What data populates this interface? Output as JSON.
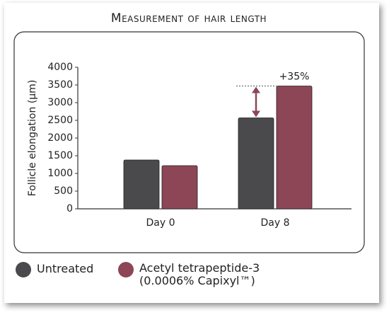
{
  "chart_data": {
    "type": "bar",
    "title": "Measurement of hair length",
    "y_label": "Follicle elongation (µm)",
    "categories": [
      "Day 0",
      "Day 8"
    ],
    "series": [
      {
        "name": "Untreated",
        "color": "#4a4a4d",
        "values": [
          1380,
          2570
        ]
      },
      {
        "name": "Acetyl tetrapeptide-3 (0.0006% Capixyl™)",
        "color": "#8c4656",
        "values": [
          1220,
          3470
        ]
      }
    ],
    "annotation": "+35%",
    "ylim": [
      0,
      4000
    ],
    "yticks": [
      0,
      500,
      1000,
      1500,
      2000,
      2500,
      3000,
      3500,
      4000
    ],
    "grid": false
  }
}
